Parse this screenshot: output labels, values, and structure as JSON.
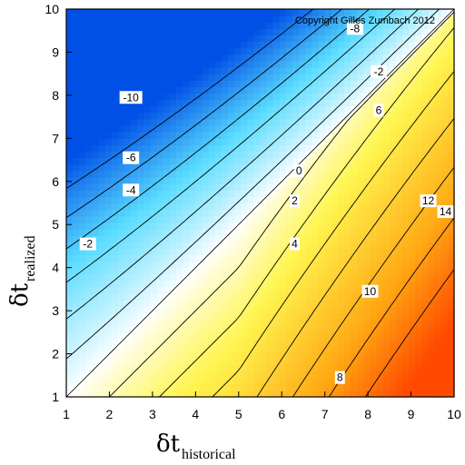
{
  "chart_data": {
    "type": "heatmap",
    "subtype": "filled-contour",
    "title": "",
    "copyright": "Copyright Gilles Zumbach 2012",
    "xlabel": {
      "symbol": "δt",
      "subscript": "historical"
    },
    "ylabel": {
      "symbol": "δt",
      "subscript": "realized"
    },
    "xlim": [
      1,
      10
    ],
    "ylim": [
      1,
      10
    ],
    "xticks": [
      "1",
      "2",
      "3",
      "4",
      "5",
      "6",
      "7",
      "8",
      "9",
      "10"
    ],
    "yticks": [
      "1",
      "2",
      "3",
      "4",
      "5",
      "6",
      "7",
      "8",
      "9",
      "10"
    ],
    "grid": false,
    "diagonal_line": true,
    "colorscale": {
      "low": "#0050e6",
      "mid": "#ffffff",
      "high": "#ff4a00",
      "range": [
        -14,
        16
      ]
    },
    "contour_levels": [
      -12,
      -10,
      -8,
      -6,
      -4,
      -2,
      0,
      2,
      4,
      6,
      8,
      10,
      12,
      14
    ],
    "contour_labels": [
      {
        "text": "-10",
        "x": 2.5,
        "y": 7.95
      },
      {
        "text": "-8",
        "x": 7.7,
        "y": 9.55
      },
      {
        "text": "-6",
        "x": 2.5,
        "y": 6.55
      },
      {
        "text": "-4",
        "x": 2.5,
        "y": 5.8
      },
      {
        "text": "-2",
        "x": 1.5,
        "y": 4.55
      },
      {
        "text": "-2",
        "x": 8.25,
        "y": 8.55
      },
      {
        "text": "0",
        "x": 6.4,
        "y": 6.25
      },
      {
        "text": "2",
        "x": 6.3,
        "y": 5.55
      },
      {
        "text": "4",
        "x": 6.3,
        "y": 4.55
      },
      {
        "text": "6",
        "x": 8.25,
        "y": 7.65
      },
      {
        "text": "8",
        "x": 7.35,
        "y": 1.45
      },
      {
        "text": "10",
        "x": 8.05,
        "y": 3.45
      },
      {
        "text": "12",
        "x": 9.4,
        "y": 5.55
      },
      {
        "text": "14",
        "x": 9.8,
        "y": 5.3
      }
    ]
  }
}
